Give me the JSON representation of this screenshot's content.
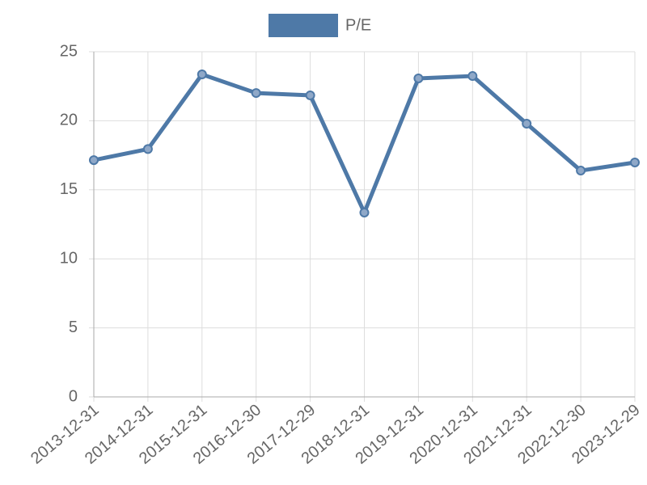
{
  "chart_data": {
    "type": "line",
    "categories": [
      "2013-12-31",
      "2014-12-31",
      "2015-12-31",
      "2016-12-30",
      "2017-12-29",
      "2018-12-31",
      "2019-12-31",
      "2020-12-31",
      "2021-12-31",
      "2022-12-30",
      "2023-12-29"
    ],
    "series": [
      {
        "name": "P/E",
        "color": "#4e79a7",
        "values": [
          17.15,
          17.95,
          23.36,
          22.01,
          21.84,
          13.35,
          23.07,
          23.24,
          19.79,
          16.39,
          16.98
        ]
      }
    ],
    "ylim": [
      0,
      25
    ],
    "yticks": [
      0,
      5,
      10,
      15,
      20,
      25
    ],
    "grid": true,
    "legend": "top"
  }
}
